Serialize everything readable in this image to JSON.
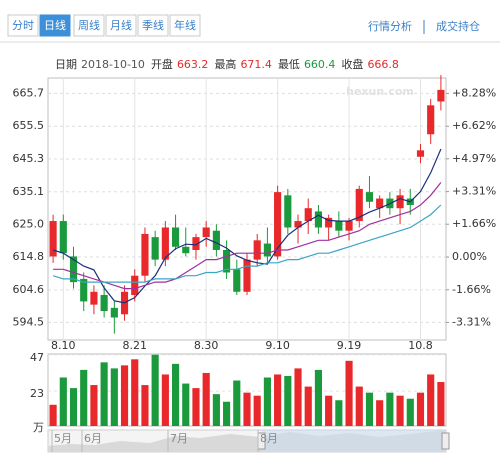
{
  "tabs": [
    "分时",
    "日线",
    "周线",
    "月线",
    "季线",
    "年线"
  ],
  "active_tab": 1,
  "links": [
    "行情分析",
    "成交持仓"
  ],
  "info": [
    {
      "label": "日期",
      "value": "2018-10-10"
    },
    {
      "label": "开盘",
      "value": 663.2,
      "color": "#e8282a"
    },
    {
      "label": "最高",
      "value": 671.4,
      "color": "#e8282a"
    },
    {
      "label": "最低",
      "value": 660.4,
      "color": "#1a9a3c"
    },
    {
      "label": "收盘",
      "value": 666.8,
      "color": "#e8282a"
    }
  ],
  "chart_data": [
    {
      "type": "candlestick",
      "watermark": "hexun.com",
      "categories": [
        null,
        "8.10",
        null,
        null,
        null,
        null,
        null,
        null,
        "8.21",
        null,
        null,
        null,
        null,
        null,
        null,
        "8.30",
        null,
        null,
        null,
        null,
        null,
        null,
        "9.10",
        null,
        null,
        null,
        null,
        null,
        null,
        "9.19",
        null,
        null,
        null,
        null,
        null,
        null,
        "10.8",
        null,
        null
      ],
      "open": [
        615,
        626,
        615,
        608,
        600,
        603,
        599,
        597,
        603,
        609,
        621,
        614,
        624,
        618,
        617,
        621,
        623,
        617,
        611,
        604,
        614,
        619,
        615,
        634,
        624,
        626,
        629,
        624,
        626,
        623,
        626,
        635,
        630,
        633,
        630,
        633,
        646,
        653,
        663.2
      ],
      "high": [
        628,
        628,
        618,
        610,
        606,
        606,
        601,
        606,
        611,
        624,
        623,
        626,
        628,
        624,
        622,
        626,
        625,
        620,
        614,
        616,
        622,
        624,
        637,
        636,
        628,
        633,
        631,
        628,
        629,
        627,
        637,
        640,
        634,
        635,
        636,
        636,
        650,
        664,
        671.4
      ],
      "low": [
        613,
        614,
        605,
        598,
        597,
        596,
        591,
        595,
        601,
        607,
        612,
        612,
        617,
        615,
        614,
        618,
        615,
        608,
        603,
        603,
        612,
        613,
        614,
        622,
        619,
        622,
        622,
        620,
        621,
        620,
        624,
        630,
        627,
        628,
        625,
        628,
        644,
        650,
        660.4
      ],
      "close": [
        626,
        616,
        607,
        601,
        604,
        598,
        596,
        604,
        609,
        622,
        614,
        624,
        618,
        616,
        621,
        624,
        617,
        610,
        604,
        614,
        620,
        615,
        635,
        624,
        626,
        630,
        624,
        627,
        623,
        626,
        636,
        632,
        633,
        630,
        634,
        631,
        648,
        662,
        666.8
      ],
      "up_color": "#e8282a",
      "down_color": "#1a9a3c",
      "series": [
        {
          "color": "#1c2f7a",
          "values": [
            617,
            616,
            614,
            612,
            610.8,
            605.2,
            601.2,
            600.6,
            602.2,
            605.8,
            609,
            614.6,
            617.4,
            618.8,
            618.6,
            620.6,
            619.2,
            617.6,
            615.2,
            613.8,
            613,
            612.6,
            617.6,
            621.6,
            624,
            626,
            627.8,
            626.2,
            626,
            626,
            627.2,
            628.8,
            630,
            631.4,
            633,
            632,
            635.2,
            641,
            648.4
          ]
        },
        {
          "color": "#a22fa0",
          "values": [
            611,
            611,
            610,
            609,
            608,
            607,
            606,
            605,
            605,
            606,
            607,
            607,
            608,
            610,
            612,
            614,
            614,
            615,
            616,
            616,
            616,
            616,
            617,
            617,
            618,
            619,
            620,
            620,
            621,
            622,
            623,
            625,
            626,
            627,
            628,
            629,
            631,
            634,
            638
          ]
        },
        {
          "color": "#3aa5c4",
          "values": [
            609,
            608,
            608,
            607,
            607,
            607,
            607,
            607,
            607,
            607,
            608,
            608,
            608,
            609,
            609,
            610,
            610,
            611,
            611,
            612,
            612,
            613,
            613,
            614,
            614,
            615,
            616,
            616,
            617,
            618,
            619,
            620,
            621,
            622,
            623,
            624,
            626,
            628,
            631
          ]
        }
      ],
      "ylim": [
        589,
        670.5
      ],
      "yticks": [
        665.7,
        655.5,
        645.3,
        635.1,
        {
          "value": 625,
          "label": "625.0"
        },
        614.8,
        604.6,
        594.5
      ],
      "y2lim": [
        -4.2,
        9.06
      ],
      "y2ticks": [
        {
          "value": 8.28,
          "label": "+8.28%"
        },
        {
          "value": 6.62,
          "label": "+6.62%"
        },
        {
          "value": 4.97,
          "label": "+4.97%"
        },
        {
          "value": 3.31,
          "label": "+3.31%"
        },
        {
          "value": 1.66,
          "label": "+1.66%"
        },
        {
          "value": 0,
          "label": "0.00%"
        },
        {
          "value": -1.66,
          "label": "-1.66%"
        },
        {
          "value": -3.31,
          "label": "-3.31%"
        }
      ],
      "grid": true
    },
    {
      "type": "bar",
      "unit": "万",
      "values": [
        14,
        32,
        25,
        37,
        27,
        42,
        38,
        40,
        44,
        27,
        47,
        34,
        41,
        28,
        25,
        35,
        21,
        16,
        30,
        22,
        20,
        32,
        34,
        33,
        38,
        26,
        37,
        20,
        17,
        43,
        26,
        22,
        17,
        22,
        20,
        18,
        22,
        34,
        29
      ],
      "ylim": [
        0,
        47.5
      ],
      "yticks": [
        47,
        23
      ]
    }
  ],
  "navigator": {
    "labels": [
      "5月",
      "6月",
      "7月",
      "8月"
    ]
  }
}
